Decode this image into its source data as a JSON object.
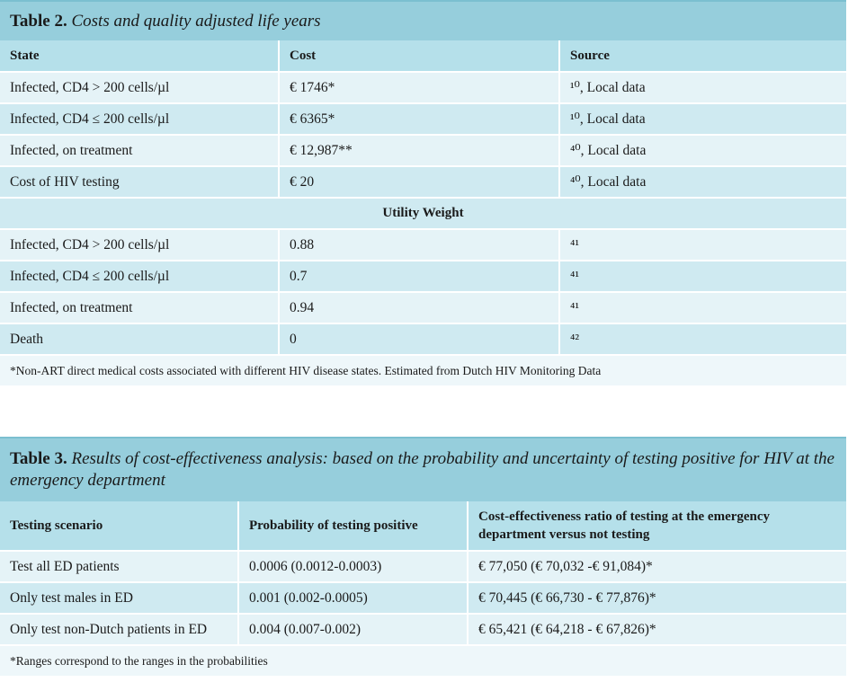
{
  "table2": {
    "label": "Table 2.",
    "title": "Costs and quality adjusted life years",
    "headers": [
      "State",
      "Cost",
      "Source"
    ],
    "cost_rows": [
      {
        "state": "Infected, CD4 > 200 cells/µl",
        "cost": "€ 1746*",
        "source": "¹⁰, Local data"
      },
      {
        "state": "Infected, CD4 ≤ 200 cells/µl",
        "cost": "€ 6365*",
        "source": "¹⁰, Local data"
      },
      {
        "state": "Infected, on treatment",
        "cost": "€ 12,987**",
        "source": "⁴⁰, Local data"
      },
      {
        "state": "Cost of HIV testing",
        "cost": "€ 20",
        "source": "⁴⁰, Local data"
      }
    ],
    "utility_header": "Utility Weight",
    "utility_rows": [
      {
        "state": "Infected, CD4 > 200 cells/µl",
        "value": "0.88",
        "source": "⁴¹"
      },
      {
        "state": "Infected, CD4 ≤ 200 cells/µl",
        "value": "0.7",
        "source": "⁴¹"
      },
      {
        "state": "Infected, on treatment",
        "value": "0.94",
        "source": "⁴¹"
      },
      {
        "state": "Death",
        "value": "0",
        "source": "⁴²"
      }
    ],
    "note": "*Non-ART direct medical costs associated with different HIV disease states. Estimated from Dutch HIV Monitoring Data"
  },
  "table3": {
    "label": "Table 3.",
    "title": "Results of cost-effectiveness analysis: based on the probability and uncertainty of testing positive for HIV at the emergency department",
    "headers": [
      "Testing scenario",
      "Probability of testing positive",
      "Cost-effectiveness ratio of testing at the emergency department versus not testing"
    ],
    "rows": [
      {
        "scenario": "Test all ED patients",
        "probability": "0.0006 (0.0012-0.0003)",
        "ratio": "€ 77,050 (€ 70,032 -€ 91,084)*"
      },
      {
        "scenario": "Only test males in ED",
        "probability": "0.001 (0.002-0.0005)",
        "ratio": "€ 70,445 (€ 66,730 - € 77,876)*"
      },
      {
        "scenario": "Only test non-Dutch patients in ED",
        "probability": "0.004 (0.007-0.002)",
        "ratio": "€ 65,421 (€ 64,218 - € 67,826)*"
      }
    ],
    "note": "*Ranges correspond to the ranges in the probabilities"
  }
}
